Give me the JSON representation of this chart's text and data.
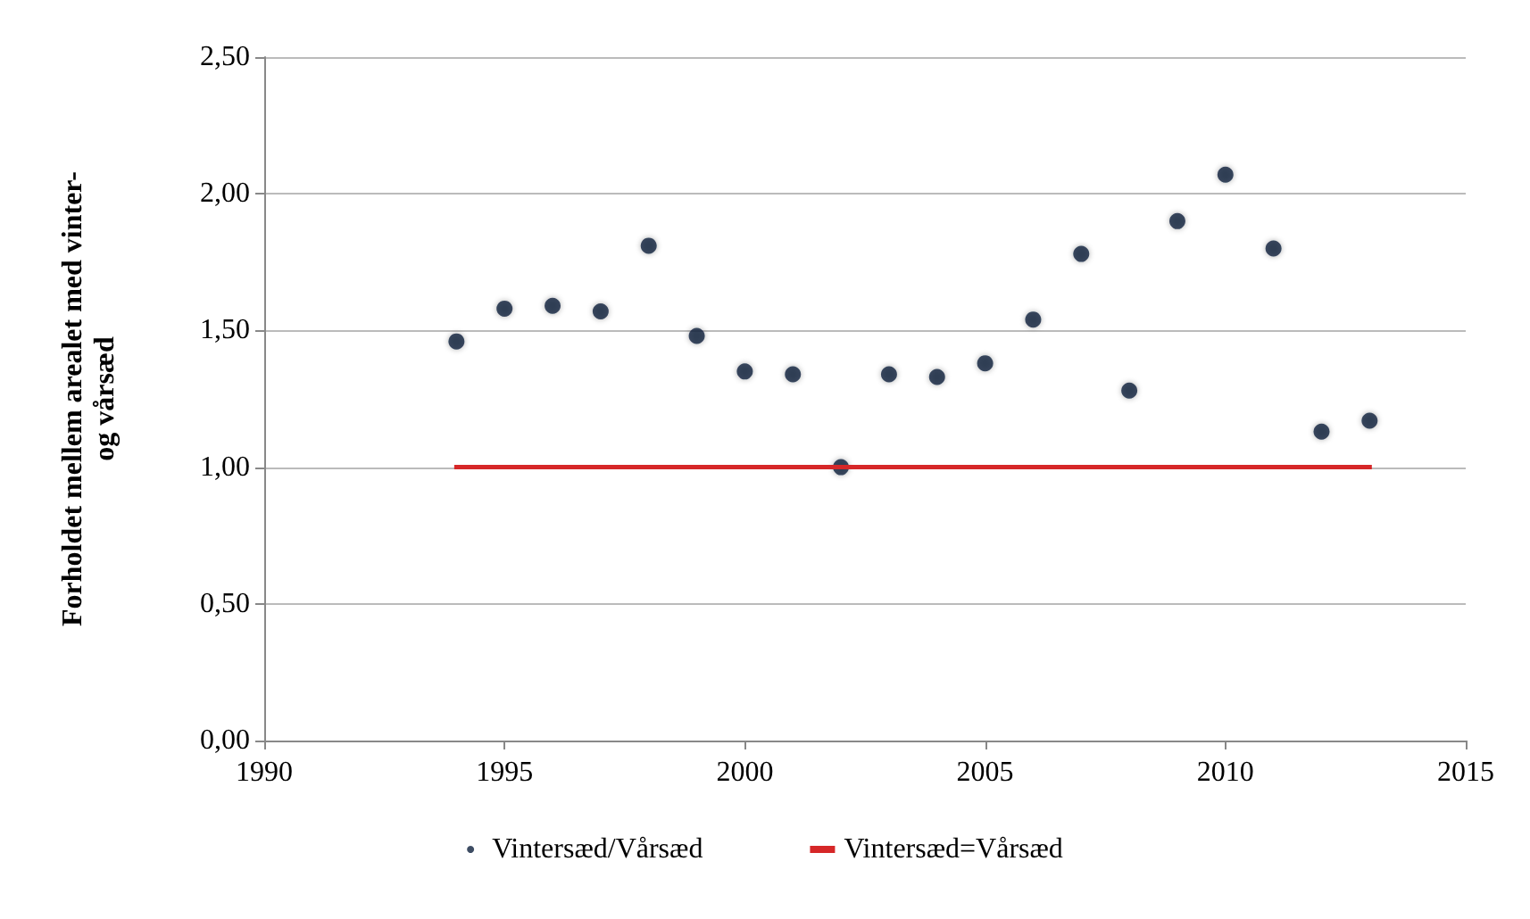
{
  "chart_data": {
    "type": "scatter",
    "ylabel": "Forholdet mellem arealet med vinter-\nog vårsæd",
    "xlim": [
      1990,
      2015
    ],
    "xticks": [
      1990,
      1995,
      2000,
      2005,
      2010,
      2015
    ],
    "ylim": [
      0,
      2.5
    ],
    "yticks": [
      {
        "value": 0,
        "label": "0,00"
      },
      {
        "value": 0.5,
        "label": "0,50"
      },
      {
        "value": 1,
        "label": "1,00"
      },
      {
        "value": 1.5,
        "label": "1,50"
      },
      {
        "value": 2,
        "label": "2,00"
      },
      {
        "value": 2.5,
        "label": "2,50"
      }
    ],
    "grid": "y",
    "legend": "bottom",
    "series": [
      {
        "name": "Vintersæd/Vårsæd",
        "marker": "circle",
        "color": "#0d1f3c",
        "x": [
          1994,
          1995,
          1996,
          1997,
          1998,
          1999,
          2000,
          2001,
          2002,
          2003,
          2004,
          2005,
          2006,
          2007,
          2008,
          2009,
          2010,
          2011,
          2012,
          2013
        ],
        "values": [
          1.46,
          1.58,
          1.59,
          1.57,
          1.81,
          1.48,
          1.35,
          1.34,
          1.0,
          1.34,
          1.33,
          1.38,
          1.54,
          1.78,
          1.28,
          1.9,
          2.07,
          1.8,
          1.13,
          1.17
        ]
      },
      {
        "name": "Vintersæd=Vårsæd",
        "type": "line",
        "color": "#d62728",
        "x": [
          1994,
          2013
        ],
        "values": [
          1,
          1
        ],
        "line_style": "solid",
        "marker": "none"
      }
    ]
  }
}
